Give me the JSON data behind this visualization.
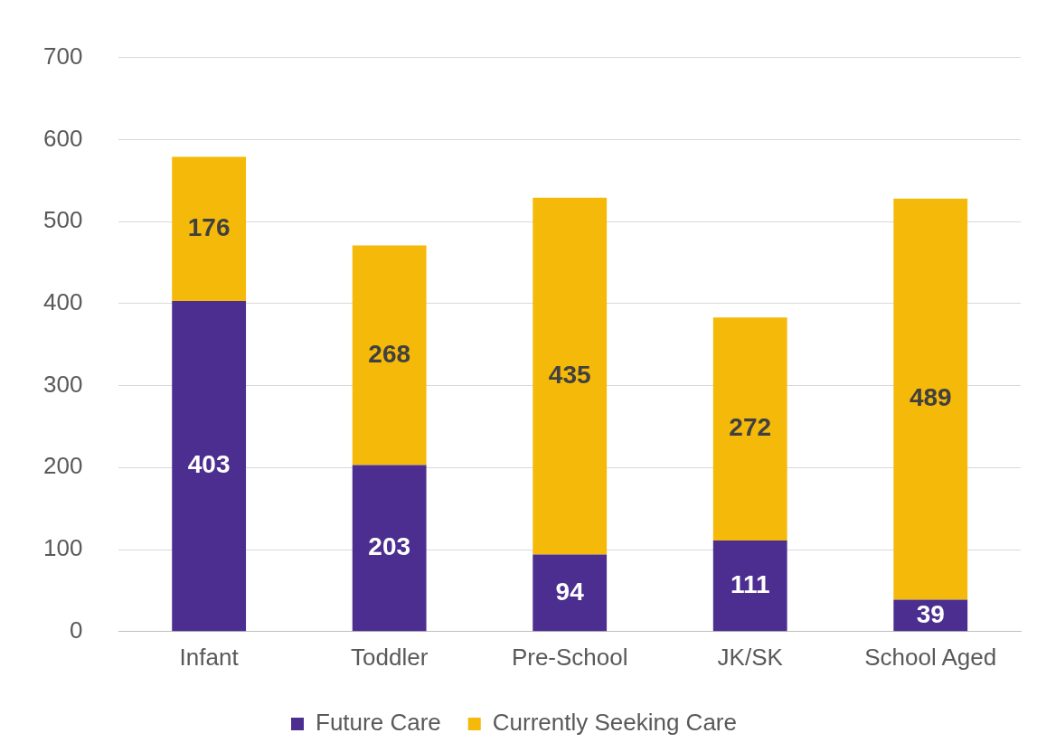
{
  "chart_data": {
    "type": "bar",
    "stacked": true,
    "categories": [
      "Infant",
      "Toddler",
      "Pre-School",
      "JK/SK",
      "School Aged"
    ],
    "series": [
      {
        "name": "Future Care",
        "color": "#4b2e8f",
        "values": [
          403,
          203,
          94,
          111,
          39
        ]
      },
      {
        "name": "Currently Seeking Care",
        "color": "#f5b90a",
        "values": [
          176,
          268,
          435,
          272,
          489
        ]
      }
    ],
    "ylim": [
      0,
      700
    ],
    "yticks": [
      0,
      100,
      200,
      300,
      400,
      500,
      600,
      700
    ],
    "grid": "y",
    "legend": "bottom",
    "data_labels": true
  }
}
